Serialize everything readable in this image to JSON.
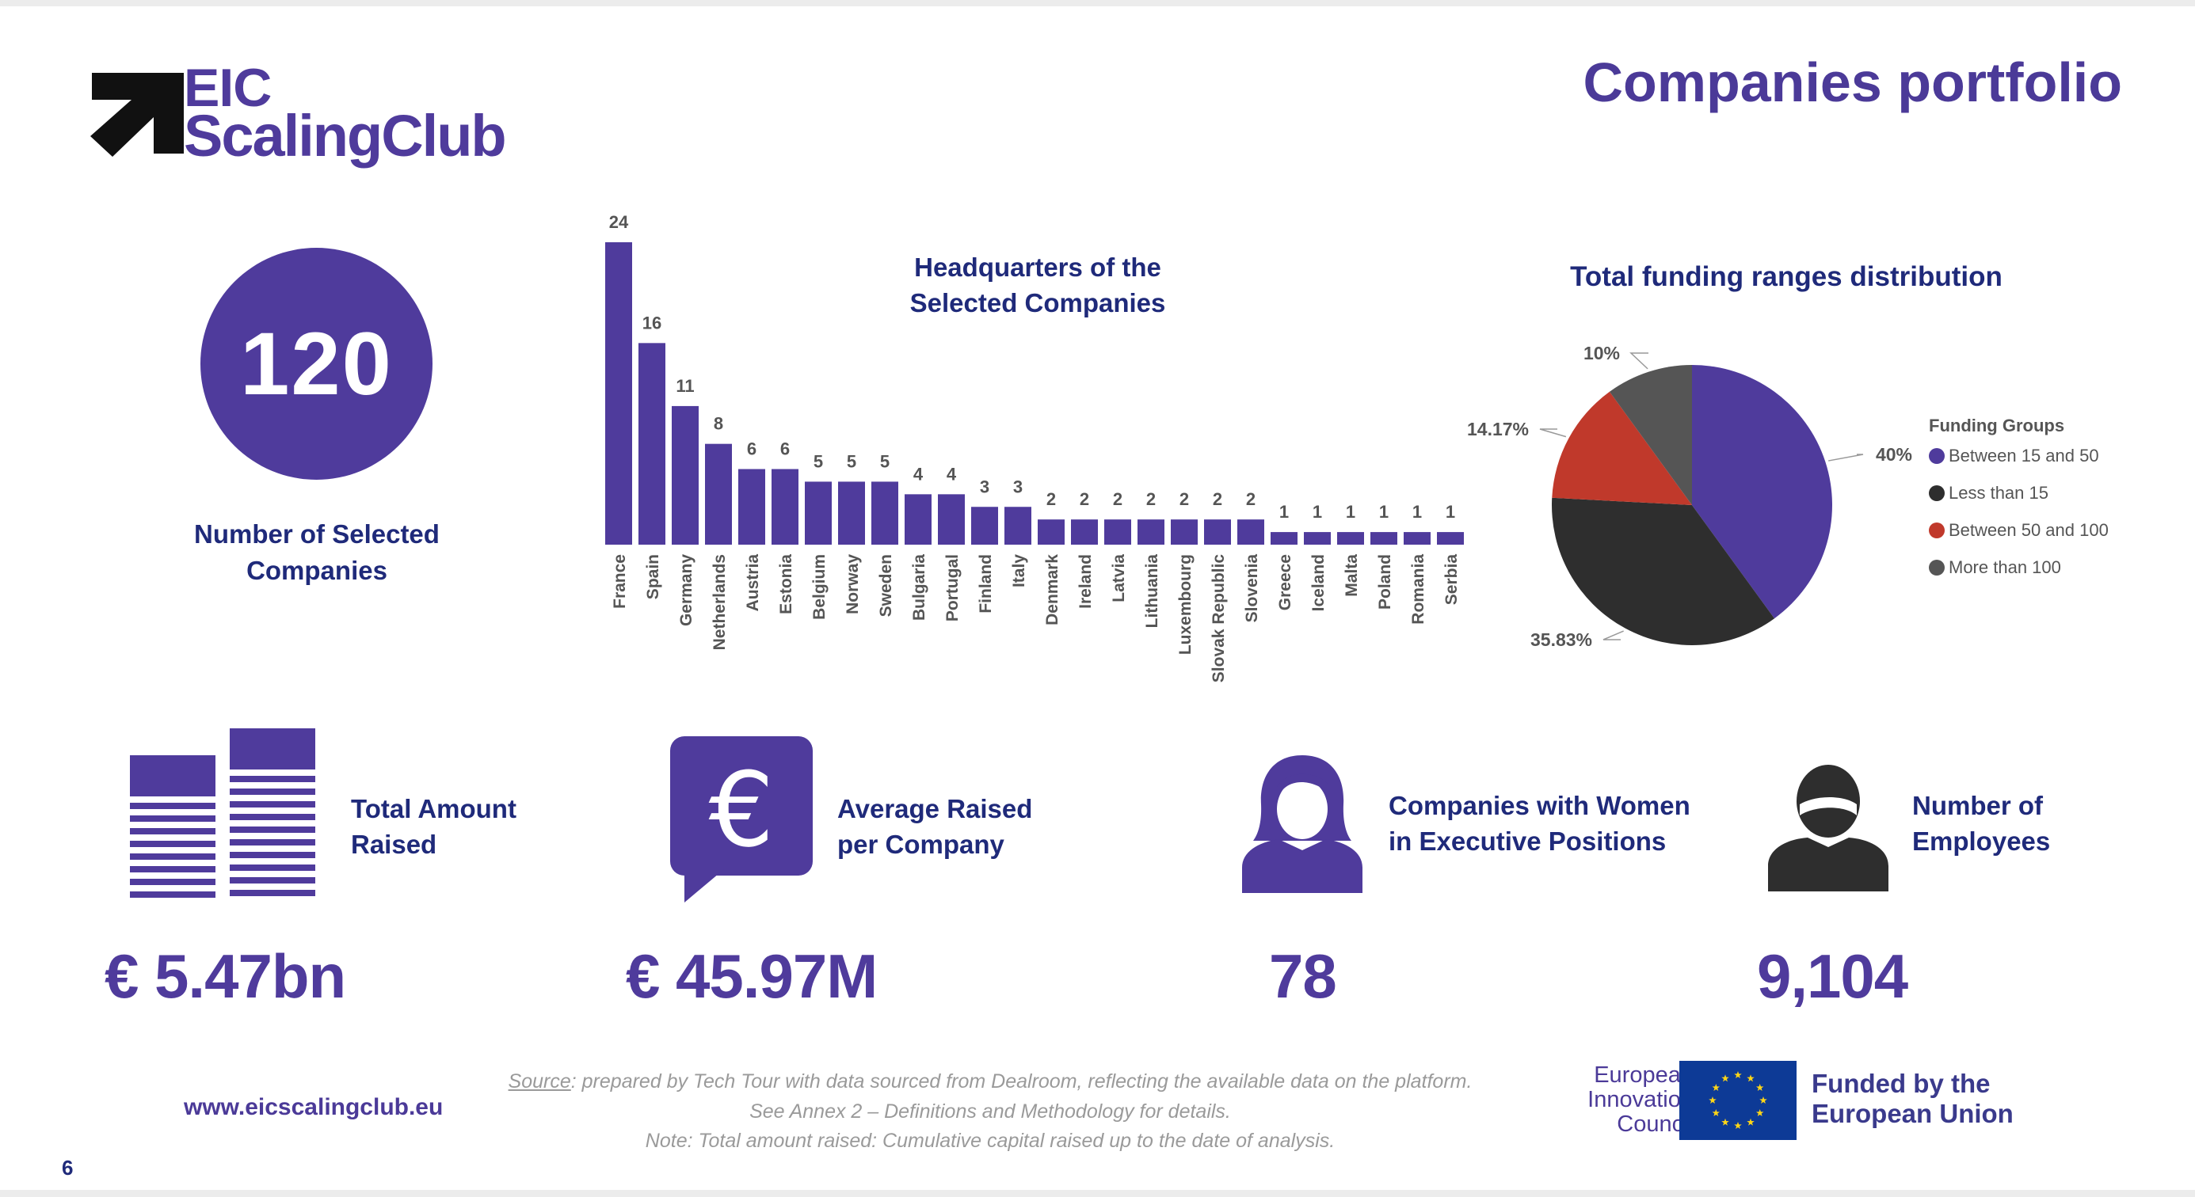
{
  "page": {
    "title": "Companies portfolio",
    "number": "6"
  },
  "logo": {
    "line1": "EIC",
    "line2": "ScalingClub"
  },
  "selected": {
    "value": "120",
    "label": "Number of Selected Companies"
  },
  "stats": [
    {
      "label": "Total Amount Raised",
      "value": "€ 5.47bn"
    },
    {
      "label": "Average Raised per Company",
      "value": "€ 45.97M"
    },
    {
      "label": "Companies with Women in Executive Positions",
      "value": "78"
    },
    {
      "label": "Number of Employees",
      "value": "9,104"
    }
  ],
  "footer": {
    "url": "www.eicscalingclub.eu",
    "source_word": "Source",
    "source_text": ": prepared by Tech Tour with data sourced from Dealroom, reflecting the available data on the platform.",
    "annex": "See Annex 2 – Definitions and Methodology for details.",
    "note": "Note: Total amount raised: Cumulative capital raised up to the date of analysis.",
    "eic_council": "European Innovation Council",
    "funded_by": "Funded by the European Union"
  },
  "colors": {
    "primary": "#4f3b9c",
    "dark": "#2e2e2e",
    "red": "#c0392b",
    "grey": "#555555"
  },
  "chart_data": [
    {
      "type": "bar",
      "title": "Headquarters of the Selected Companies",
      "xlabel": "",
      "ylabel": "",
      "ylim": [
        0,
        24
      ],
      "categories": [
        "France",
        "Spain",
        "Germany",
        "Netherlands",
        "Austria",
        "Estonia",
        "Belgium",
        "Norway",
        "Sweden",
        "Bulgaria",
        "Portugal",
        "Finland",
        "Italy",
        "Denmark",
        "Ireland",
        "Latvia",
        "Lithuania",
        "Luxembourg",
        "Slovak Republic",
        "Slovenia",
        "Greece",
        "Iceland",
        "Malta",
        "Poland",
        "Romania",
        "Serbia"
      ],
      "values": [
        24,
        16,
        11,
        8,
        6,
        6,
        5,
        5,
        5,
        4,
        4,
        3,
        3,
        2,
        2,
        2,
        2,
        2,
        2,
        2,
        1,
        1,
        1,
        1,
        1,
        1
      ]
    },
    {
      "type": "pie",
      "title": "Total funding ranges distribution",
      "legend_title": "Funding Groups",
      "legend_position": "right",
      "slices": [
        {
          "name": "Between 15 and 50",
          "value": 40,
          "label": "40%",
          "color": "#4f3b9c"
        },
        {
          "name": "Less than 15",
          "value": 35.83,
          "label": "35.83%",
          "color": "#2e2e2e"
        },
        {
          "name": "Between 50 and 100",
          "value": 14.17,
          "label": "14.17%",
          "color": "#c0392b"
        },
        {
          "name": "More than 100",
          "value": 10,
          "label": "10%",
          "color": "#555555"
        }
      ]
    }
  ]
}
